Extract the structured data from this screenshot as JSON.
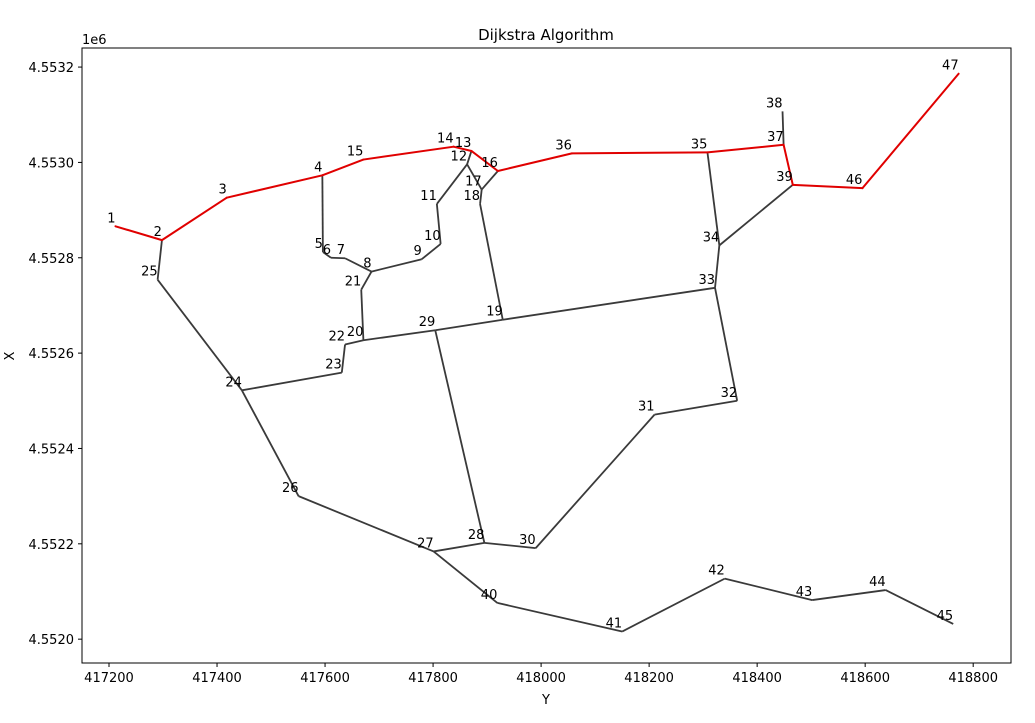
{
  "chart_data": {
    "type": "line",
    "title": "Dijkstra Algorithm",
    "xlabel": "Y",
    "ylabel": "X",
    "offset_label": "1e6",
    "xlim": [
      417150,
      418870
    ],
    "ylim": [
      4551950,
      4553240
    ],
    "xticks": [
      417200,
      417400,
      417600,
      417800,
      418000,
      418200,
      418400,
      418600,
      418800
    ],
    "xtick_labels": [
      "417200",
      "417400",
      "417600",
      "417800",
      "418000",
      "418200",
      "418400",
      "418600",
      "418800"
    ],
    "yticks": [
      4552000,
      4552200,
      4552400,
      4552600,
      4552800,
      4553000,
      4553200
    ],
    "ytick_labels": [
      "4.5520",
      "4.5522",
      "4.5524",
      "4.5526",
      "4.5528",
      "4.5530",
      "4.5532"
    ],
    "grid": false,
    "colors": {
      "edge": "#3a3a3a",
      "path": "#e00000"
    },
    "nodes": [
      {
        "id": "1",
        "x": 417212,
        "y": 4552866
      },
      {
        "id": "2",
        "x": 417298,
        "y": 4552837
      },
      {
        "id": "3",
        "x": 417418,
        "y": 4552926
      },
      {
        "id": "4",
        "x": 417595,
        "y": 4552973
      },
      {
        "id": "5",
        "x": 417596,
        "y": 4552812
      },
      {
        "id": "6",
        "x": 417611,
        "y": 4552800
      },
      {
        "id": "7",
        "x": 417637,
        "y": 4552799
      },
      {
        "id": "8",
        "x": 417686,
        "y": 4552771
      },
      {
        "id": "9",
        "x": 417779,
        "y": 4552797
      },
      {
        "id": "10",
        "x": 417814,
        "y": 4552829
      },
      {
        "id": "11",
        "x": 417807,
        "y": 4552913
      },
      {
        "id": "12",
        "x": 417863,
        "y": 4552996
      },
      {
        "id": "13",
        "x": 417871,
        "y": 4553024
      },
      {
        "id": "14",
        "x": 417838,
        "y": 4553033
      },
      {
        "id": "15",
        "x": 417671,
        "y": 4553006
      },
      {
        "id": "16",
        "x": 417920,
        "y": 4552982
      },
      {
        "id": "17",
        "x": 417890,
        "y": 4552943
      },
      {
        "id": "18",
        "x": 417887,
        "y": 4552913
      },
      {
        "id": "19",
        "x": 417929,
        "y": 4552670
      },
      {
        "id": "20",
        "x": 417671,
        "y": 4552627
      },
      {
        "id": "21",
        "x": 417667,
        "y": 4552733
      },
      {
        "id": "22",
        "x": 417637,
        "y": 4552618
      },
      {
        "id": "23",
        "x": 417631,
        "y": 4552559
      },
      {
        "id": "24",
        "x": 417446,
        "y": 4552522
      },
      {
        "id": "25",
        "x": 417290,
        "y": 4552754
      },
      {
        "id": "26",
        "x": 417551,
        "y": 4552300
      },
      {
        "id": "27",
        "x": 417801,
        "y": 4552184
      },
      {
        "id": "28",
        "x": 417895,
        "y": 4552202
      },
      {
        "id": "29",
        "x": 417804,
        "y": 4552648
      },
      {
        "id": "30",
        "x": 417990,
        "y": 4552191
      },
      {
        "id": "31",
        "x": 418210,
        "y": 4552471
      },
      {
        "id": "32",
        "x": 418363,
        "y": 4552500
      },
      {
        "id": "33",
        "x": 418322,
        "y": 4552737
      },
      {
        "id": "34",
        "x": 418330,
        "y": 4552826
      },
      {
        "id": "35",
        "x": 418308,
        "y": 4553021
      },
      {
        "id": "36",
        "x": 418057,
        "y": 4553019
      },
      {
        "id": "37",
        "x": 418449,
        "y": 4553037
      },
      {
        "id": "38",
        "x": 418447,
        "y": 4553107
      },
      {
        "id": "39",
        "x": 418466,
        "y": 4552953
      },
      {
        "id": "40",
        "x": 417919,
        "y": 4552076
      },
      {
        "id": "41",
        "x": 418150,
        "y": 4552016
      },
      {
        "id": "42",
        "x": 418340,
        "y": 4552127
      },
      {
        "id": "43",
        "x": 418502,
        "y": 4552082
      },
      {
        "id": "44",
        "x": 418638,
        "y": 4552103
      },
      {
        "id": "45",
        "x": 418763,
        "y": 4552032
      },
      {
        "id": "46",
        "x": 418595,
        "y": 4552946
      },
      {
        "id": "47",
        "x": 418773,
        "y": 4553186
      }
    ],
    "edges": [
      [
        "2",
        "25"
      ],
      [
        "25",
        "24"
      ],
      [
        "24",
        "26"
      ],
      [
        "26",
        "27"
      ],
      [
        "24",
        "23"
      ],
      [
        "23",
        "22"
      ],
      [
        "22",
        "20"
      ],
      [
        "20",
        "29"
      ],
      [
        "29",
        "19"
      ],
      [
        "19",
        "33"
      ],
      [
        "20",
        "21"
      ],
      [
        "21",
        "8"
      ],
      [
        "8",
        "7"
      ],
      [
        "7",
        "6"
      ],
      [
        "6",
        "5"
      ],
      [
        "5",
        "4"
      ],
      [
        "8",
        "9"
      ],
      [
        "9",
        "10"
      ],
      [
        "10",
        "11"
      ],
      [
        "11",
        "12"
      ],
      [
        "12",
        "13"
      ],
      [
        "12",
        "17"
      ],
      [
        "17",
        "16"
      ],
      [
        "17",
        "18"
      ],
      [
        "18",
        "19"
      ],
      [
        "29",
        "28"
      ],
      [
        "28",
        "27"
      ],
      [
        "28",
        "30"
      ],
      [
        "30",
        "31"
      ],
      [
        "31",
        "32"
      ],
      [
        "32",
        "33"
      ],
      [
        "33",
        "34"
      ],
      [
        "34",
        "35"
      ],
      [
        "34",
        "39"
      ],
      [
        "37",
        "38"
      ],
      [
        "27",
        "40"
      ],
      [
        "40",
        "41"
      ],
      [
        "41",
        "42"
      ],
      [
        "42",
        "43"
      ],
      [
        "43",
        "44"
      ],
      [
        "44",
        "45"
      ]
    ],
    "path": [
      "1",
      "2",
      "3",
      "4",
      "15",
      "14",
      "13",
      "16",
      "36",
      "35",
      "37",
      "39",
      "46",
      "47"
    ]
  }
}
